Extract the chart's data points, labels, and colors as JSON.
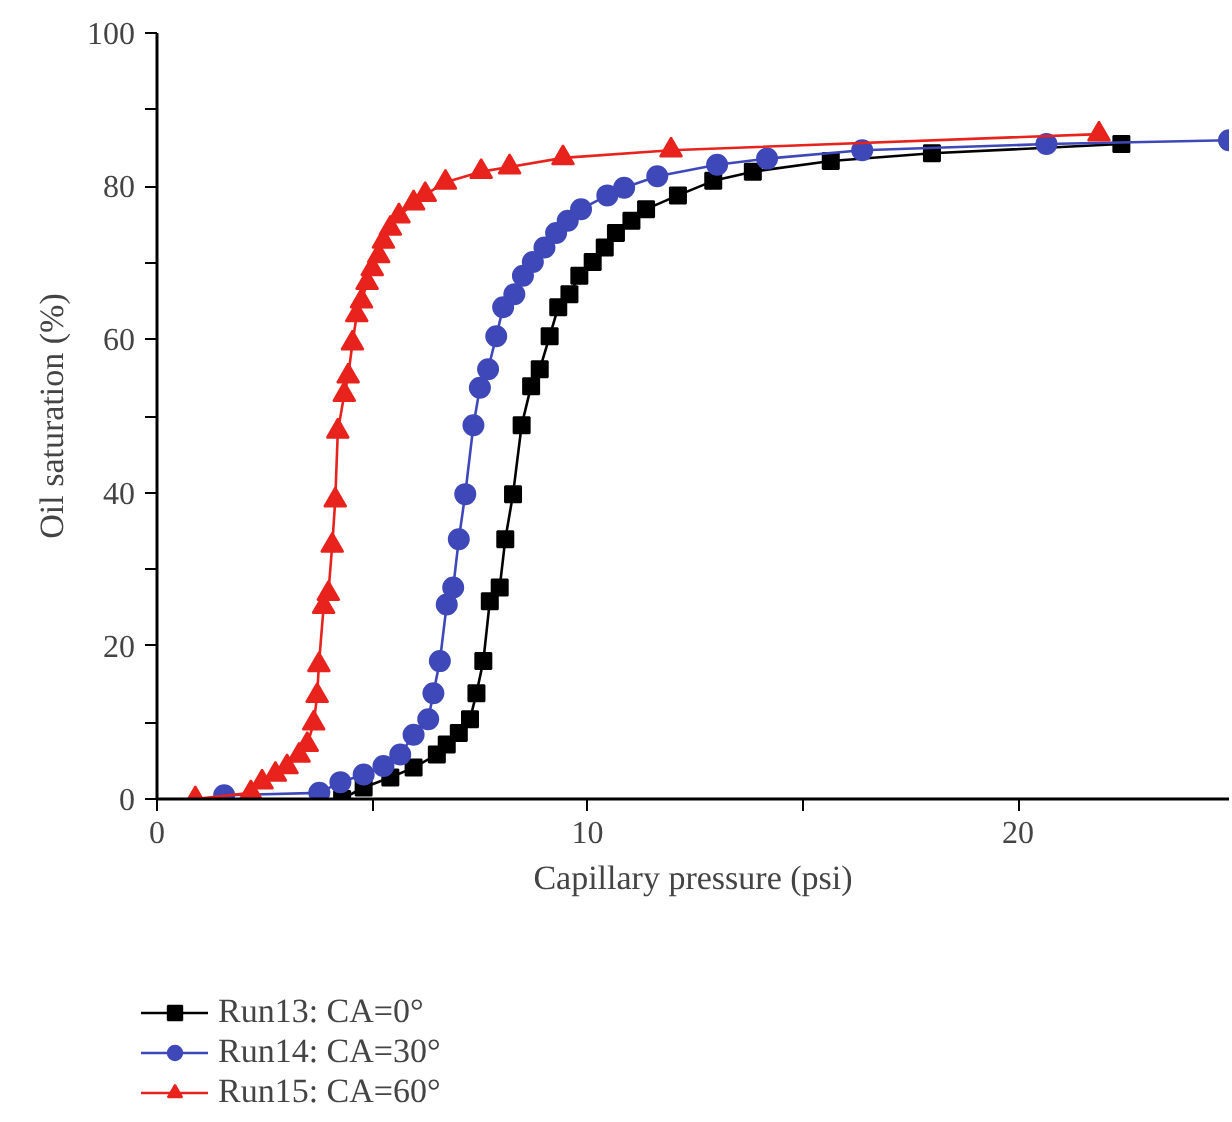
{
  "chart_data": {
    "type": "line",
    "xlabel": "Capillary pressure (psi)",
    "ylabel": "Oil saturation (%)",
    "xlim": [
      0,
      24.9
    ],
    "ylim": [
      0,
      100
    ],
    "xticks": [
      0,
      {
        "value": 5,
        "label": null
      },
      10,
      {
        "value": 15,
        "label": null
      },
      20
    ],
    "yticks": [
      0,
      {
        "value": 10,
        "label": null
      },
      20,
      {
        "value": 30,
        "label": null
      },
      40,
      {
        "value": 50,
        "label": null
      },
      60,
      {
        "value": 70,
        "label": null
      },
      80,
      {
        "value": 90,
        "label": null
      },
      100
    ],
    "grid": false,
    "legend": "bottom",
    "line_style": "solid",
    "series": [
      {
        "name": "Run13: CA=0°",
        "color": "#000000",
        "marker": "square",
        "x": [
          4.3,
          4.8,
          5.42,
          5.96,
          6.5,
          6.73,
          7.01,
          7.27,
          7.42,
          7.58,
          7.73,
          7.96,
          8.09,
          8.27,
          8.47,
          8.69,
          8.89,
          9.12,
          9.32,
          9.58,
          9.81,
          10.12,
          10.4,
          10.66,
          11.02,
          11.36,
          12.1,
          12.92,
          13.84,
          15.65,
          18.0,
          22.4
        ],
        "values": [
          0,
          1.5,
          2.8,
          4.1,
          5.8,
          7.1,
          8.6,
          10.4,
          13.8,
          18.0,
          25.8,
          27.6,
          33.9,
          39.8,
          48.8,
          53.9,
          56.1,
          60.4,
          64.2,
          65.9,
          68.3,
          70.1,
          72.0,
          73.9,
          75.5,
          77.0,
          78.8,
          80.7,
          81.9,
          83.3,
          84.3,
          85.5
        ]
      },
      {
        "name": "Run14: CA=30°",
        "color": "#3f48b8",
        "marker": "circle",
        "x": [
          1.56,
          3.77,
          4.26,
          4.8,
          5.26,
          5.65,
          5.96,
          6.3,
          6.42,
          6.57,
          6.73,
          6.88,
          7.01,
          7.16,
          7.35,
          7.5,
          7.69,
          7.88,
          8.04,
          8.3,
          8.5,
          8.73,
          9.0,
          9.27,
          9.54,
          9.85,
          10.46,
          10.85,
          11.62,
          13.01,
          14.17,
          16.38,
          20.66,
          24.9
        ],
        "values": [
          0.5,
          0.8,
          2.2,
          3.2,
          4.3,
          5.8,
          8.4,
          10.4,
          13.8,
          18.0,
          25.4,
          27.6,
          33.9,
          39.8,
          48.8,
          53.7,
          56.1,
          60.4,
          64.2,
          65.9,
          68.3,
          70.1,
          72.0,
          73.9,
          75.5,
          77.0,
          78.8,
          79.8,
          81.3,
          82.8,
          83.6,
          84.7,
          85.5,
          86.0
        ]
      },
      {
        "name": "Run15: CA=60°",
        "color": "#e8221c",
        "marker": "triangle",
        "x": [
          0.89,
          2.18,
          2.44,
          2.75,
          3.02,
          3.3,
          3.49,
          3.64,
          3.72,
          3.76,
          3.87,
          3.98,
          4.07,
          4.14,
          4.2,
          4.35,
          4.44,
          4.54,
          4.64,
          4.75,
          4.88,
          5.0,
          5.15,
          5.26,
          5.42,
          5.62,
          5.96,
          6.23,
          6.7,
          7.53,
          8.19,
          9.43,
          11.94,
          21.88
        ],
        "values": [
          0,
          0.8,
          2.2,
          3.2,
          4.2,
          5.7,
          7.1,
          9.9,
          13.5,
          17.5,
          25.1,
          26.8,
          33.1,
          39.0,
          48.0,
          52.8,
          55.2,
          59.5,
          63.2,
          65.0,
          67.4,
          69.2,
          70.9,
          72.8,
          74.5,
          76.1,
          77.8,
          78.9,
          80.5,
          81.9,
          82.5,
          83.7,
          84.7,
          86.8
        ]
      }
    ]
  }
}
